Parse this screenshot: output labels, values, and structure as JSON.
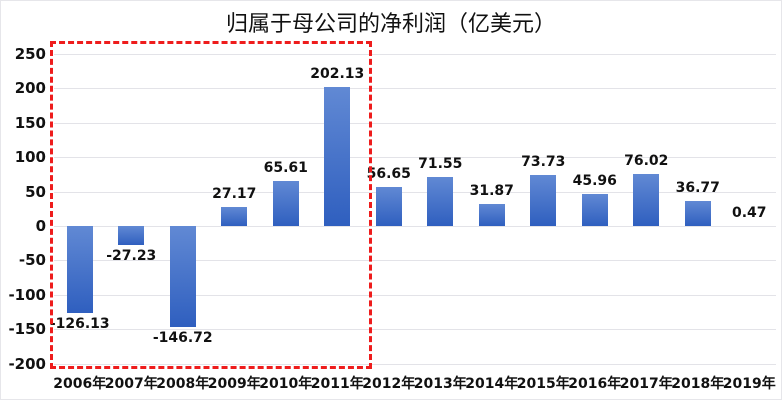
{
  "chart_data": {
    "type": "bar",
    "title": "归属于母公司的净利润（亿美元）",
    "xlabel": "",
    "ylabel": "",
    "ylim": [
      -200,
      250
    ],
    "yticks": [
      250,
      200,
      150,
      100,
      50,
      0,
      -50,
      -100,
      -150,
      -200
    ],
    "grid": true,
    "legend": null,
    "categories": [
      "2006年",
      "2007年",
      "2008年",
      "2009年",
      "2010年",
      "2011年",
      "2012年",
      "2013年",
      "2014年",
      "2015年",
      "2016年",
      "2017年",
      "2018年",
      "2019年"
    ],
    "values": [
      -126.13,
      -27.23,
      -146.72,
      27.17,
      65.61,
      202.13,
      56.65,
      71.55,
      31.87,
      73.73,
      45.96,
      76.02,
      36.77,
      0.47
    ],
    "value_labels": [
      "-126.13",
      "-27.23",
      "-146.72",
      "27.17",
      "65.61",
      "202.13",
      "56.65",
      "71.55",
      "31.87",
      "73.73",
      "45.96",
      "76.02",
      "36.77",
      "0.47"
    ],
    "bar_color": "#4472c4",
    "annotations": [
      {
        "type": "dashed-rectangle",
        "color": "#ee1c1c",
        "spans_categories": [
          "2006年",
          "2011年"
        ]
      }
    ]
  }
}
